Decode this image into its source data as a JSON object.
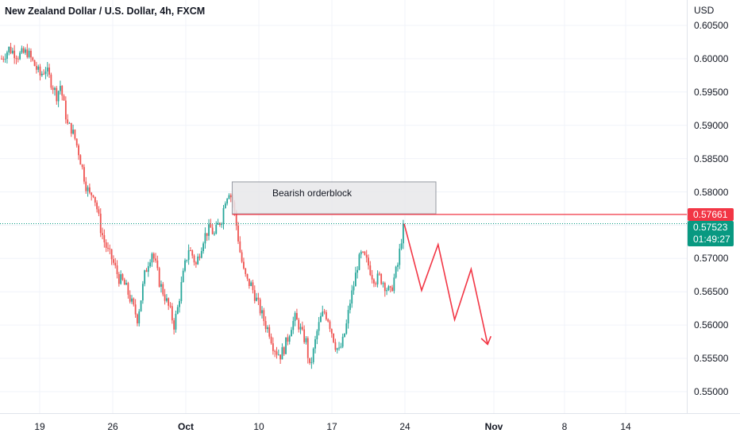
{
  "header": {
    "title": "New Zealand Dollar / U.S. Dollar, 4h, FXCM",
    "currency": "USD"
  },
  "colors": {
    "up": "#26a69a",
    "down": "#ef5350",
    "drawing": "#f23645",
    "current_price_bg": "#089981",
    "box_fill": "#e8e8ea",
    "box_border": "#9598a1",
    "grid": "#f0f3fa"
  },
  "annotations": {
    "orderblock_label": "Bearish orderblock"
  },
  "price_labels": {
    "level": "0.57661",
    "current": "0.57523",
    "countdown": "01:49:27"
  },
  "chart_data": {
    "type": "candlestick",
    "title": "New Zealand Dollar / U.S. Dollar, 4h, FXCM",
    "yaxis_label": "USD",
    "ylim": [
      0.5455,
      0.6065
    ],
    "y_ticks": [
      "0.60500",
      "0.60000",
      "0.59500",
      "0.59000",
      "0.58500",
      "0.58000",
      "0.57500",
      "0.57000",
      "0.56500",
      "0.56000",
      "0.55500",
      "0.55000"
    ],
    "x_ticks": [
      {
        "label": "19",
        "bold": false
      },
      {
        "label": "26",
        "bold": false
      },
      {
        "label": "Oct",
        "bold": true
      },
      {
        "label": "10",
        "bold": false
      },
      {
        "label": "17",
        "bold": false
      },
      {
        "label": "24",
        "bold": false
      },
      {
        "label": "Nov",
        "bold": true
      },
      {
        "label": "8",
        "bold": false
      },
      {
        "label": "14",
        "bold": false
      }
    ],
    "price_path": [
      [
        0,
        0.6
      ],
      [
        4,
        0.6015
      ],
      [
        9,
        0.6005
      ],
      [
        14,
        0.601
      ],
      [
        18,
        0.599
      ],
      [
        21,
        0.5975
      ],
      [
        24,
        0.5985
      ],
      [
        27,
        0.5965
      ],
      [
        30,
        0.5945
      ],
      [
        32,
        0.596
      ],
      [
        34,
        0.593
      ],
      [
        36,
        0.59
      ],
      [
        38,
        0.5895
      ],
      [
        40,
        0.588
      ],
      [
        42,
        0.586
      ],
      [
        44,
        0.5835
      ],
      [
        46,
        0.581
      ],
      [
        48,
        0.5795
      ],
      [
        50,
        0.58
      ],
      [
        52,
        0.5775
      ],
      [
        54,
        0.5745
      ],
      [
        56,
        0.5725
      ],
      [
        58,
        0.571
      ],
      [
        60,
        0.57
      ],
      [
        62,
        0.5685
      ],
      [
        64,
        0.567
      ],
      [
        66,
        0.5665
      ],
      [
        68,
        0.5655
      ],
      [
        70,
        0.564
      ],
      [
        72,
        0.5625
      ],
      [
        74,
        0.561
      ],
      [
        76,
        0.564
      ],
      [
        78,
        0.5675
      ],
      [
        80,
        0.5695
      ],
      [
        82,
        0.571
      ],
      [
        84,
        0.569
      ],
      [
        86,
        0.5665
      ],
      [
        88,
        0.565
      ],
      [
        90,
        0.5635
      ],
      [
        92,
        0.562
      ],
      [
        94,
        0.56
      ],
      [
        96,
        0.5625
      ],
      [
        98,
        0.566
      ],
      [
        100,
        0.569
      ],
      [
        102,
        0.5715
      ],
      [
        104,
        0.5705
      ],
      [
        106,
        0.569
      ],
      [
        108,
        0.571
      ],
      [
        110,
        0.573
      ],
      [
        112,
        0.574
      ],
      [
        114,
        0.5745
      ],
      [
        116,
        0.5735
      ],
      [
        118,
        0.575
      ],
      [
        120,
        0.576
      ],
      [
        122,
        0.579
      ],
      [
        124,
        0.5802
      ],
      [
        126,
        0.5785
      ],
      [
        128,
        0.575
      ],
      [
        130,
        0.571
      ],
      [
        132,
        0.568
      ],
      [
        134,
        0.5665
      ],
      [
        136,
        0.566
      ],
      [
        138,
        0.5645
      ],
      [
        140,
        0.563
      ],
      [
        142,
        0.5615
      ],
      [
        144,
        0.56
      ],
      [
        146,
        0.559
      ],
      [
        148,
        0.557
      ],
      [
        150,
        0.556
      ],
      [
        152,
        0.5555
      ],
      [
        154,
        0.5565
      ],
      [
        156,
        0.558
      ],
      [
        158,
        0.56
      ],
      [
        160,
        0.561
      ],
      [
        162,
        0.56
      ],
      [
        164,
        0.5585
      ],
      [
        166,
        0.5575
      ],
      [
        168,
        0.5535
      ],
      [
        170,
        0.556
      ],
      [
        172,
        0.559
      ],
      [
        174,
        0.561
      ],
      [
        176,
        0.562
      ],
      [
        178,
        0.561
      ],
      [
        180,
        0.559
      ],
      [
        182,
        0.557
      ],
      [
        184,
        0.556
      ],
      [
        186,
        0.5575
      ],
      [
        188,
        0.56
      ],
      [
        190,
        0.5635
      ],
      [
        192,
        0.566
      ],
      [
        194,
        0.569
      ],
      [
        196,
        0.5705
      ],
      [
        198,
        0.57
      ],
      [
        200,
        0.569
      ],
      [
        202,
        0.5675
      ],
      [
        204,
        0.5668
      ],
      [
        206,
        0.5672
      ],
      [
        208,
        0.5665
      ],
      [
        210,
        0.5655
      ],
      [
        212,
        0.5648
      ],
      [
        214,
        0.567
      ],
      [
        216,
        0.569
      ],
      [
        218,
        0.573
      ],
      [
        219,
        0.5752
      ]
    ],
    "candle_count": 220,
    "orderblock_zone": {
      "top": 0.5815,
      "bottom": 0.5767,
      "start_index": 124,
      "end_index": 234
    },
    "level_line": {
      "price": 0.57661,
      "start_index": 124
    },
    "current_price": 0.57523,
    "projection_path": [
      [
        219.5,
        0.5752
      ],
      [
        229,
        0.5652
      ],
      [
        238,
        0.5721
      ],
      [
        247,
        0.5608
      ],
      [
        256,
        0.5684
      ],
      [
        265,
        0.5571
      ]
    ],
    "grid": true
  }
}
